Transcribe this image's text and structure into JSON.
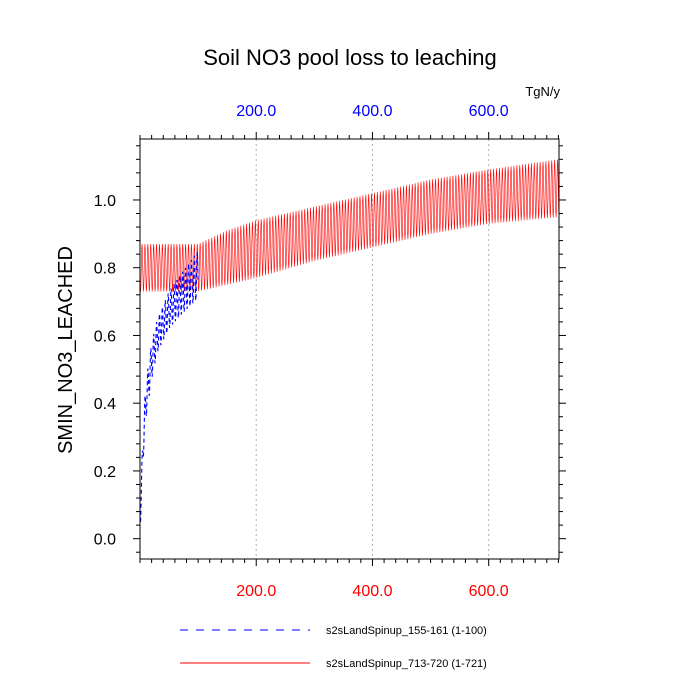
{
  "chart_data": {
    "type": "line",
    "title": "Soil NO3 pool loss to leaching",
    "ylabel": "SMIN_NO3_LEACHED",
    "top_axis_units": "TgN/y",
    "xlim": [
      0,
      721
    ],
    "ylim": [
      -0.06,
      1.18
    ],
    "yticks": [
      0.0,
      0.2,
      0.4,
      0.6,
      0.8,
      1.0
    ],
    "ytick_labels": [
      "0.0",
      "0.2",
      "0.4",
      "0.6",
      "0.8",
      "1.0"
    ],
    "xticks_bottom": [
      200,
      400,
      600
    ],
    "xtick_labels_bottom": [
      "200.0",
      "400.0",
      "600.0"
    ],
    "xticks_top": [
      200,
      400,
      600
    ],
    "xtick_labels_top": [
      "200.0",
      "400.0",
      "600.0"
    ],
    "bottom_axis_color": "#ff0000",
    "top_axis_color": "#0000ff",
    "vertical_gridlines_at": [
      200,
      400,
      600
    ],
    "oscillation_period_years": 5,
    "series": [
      {
        "name": "s2sLandSpinup_155-161 (1-100)",
        "color": "#0000ff",
        "dash": "dashed",
        "x_range": [
          1,
          100
        ],
        "envelope": {
          "x": [
            1,
            5,
            10,
            20,
            30,
            50,
            70,
            100
          ],
          "low": [
            0.05,
            0.22,
            0.35,
            0.47,
            0.55,
            0.62,
            0.66,
            0.71
          ],
          "high": [
            0.1,
            0.32,
            0.46,
            0.58,
            0.65,
            0.73,
            0.78,
            0.85
          ]
        }
      },
      {
        "name": "s2sLandSpinup_713-720 (1-721)",
        "color": "#ff0000",
        "dash": "solid",
        "x_range": [
          1,
          721
        ],
        "envelope": {
          "x": [
            100,
            150,
            200,
            300,
            400,
            500,
            600,
            721
          ],
          "low": [
            0.73,
            0.75,
            0.77,
            0.82,
            0.86,
            0.9,
            0.93,
            0.95
          ],
          "high": [
            0.87,
            0.91,
            0.94,
            0.98,
            1.02,
            1.06,
            1.09,
            1.12
          ]
        }
      }
    ]
  }
}
